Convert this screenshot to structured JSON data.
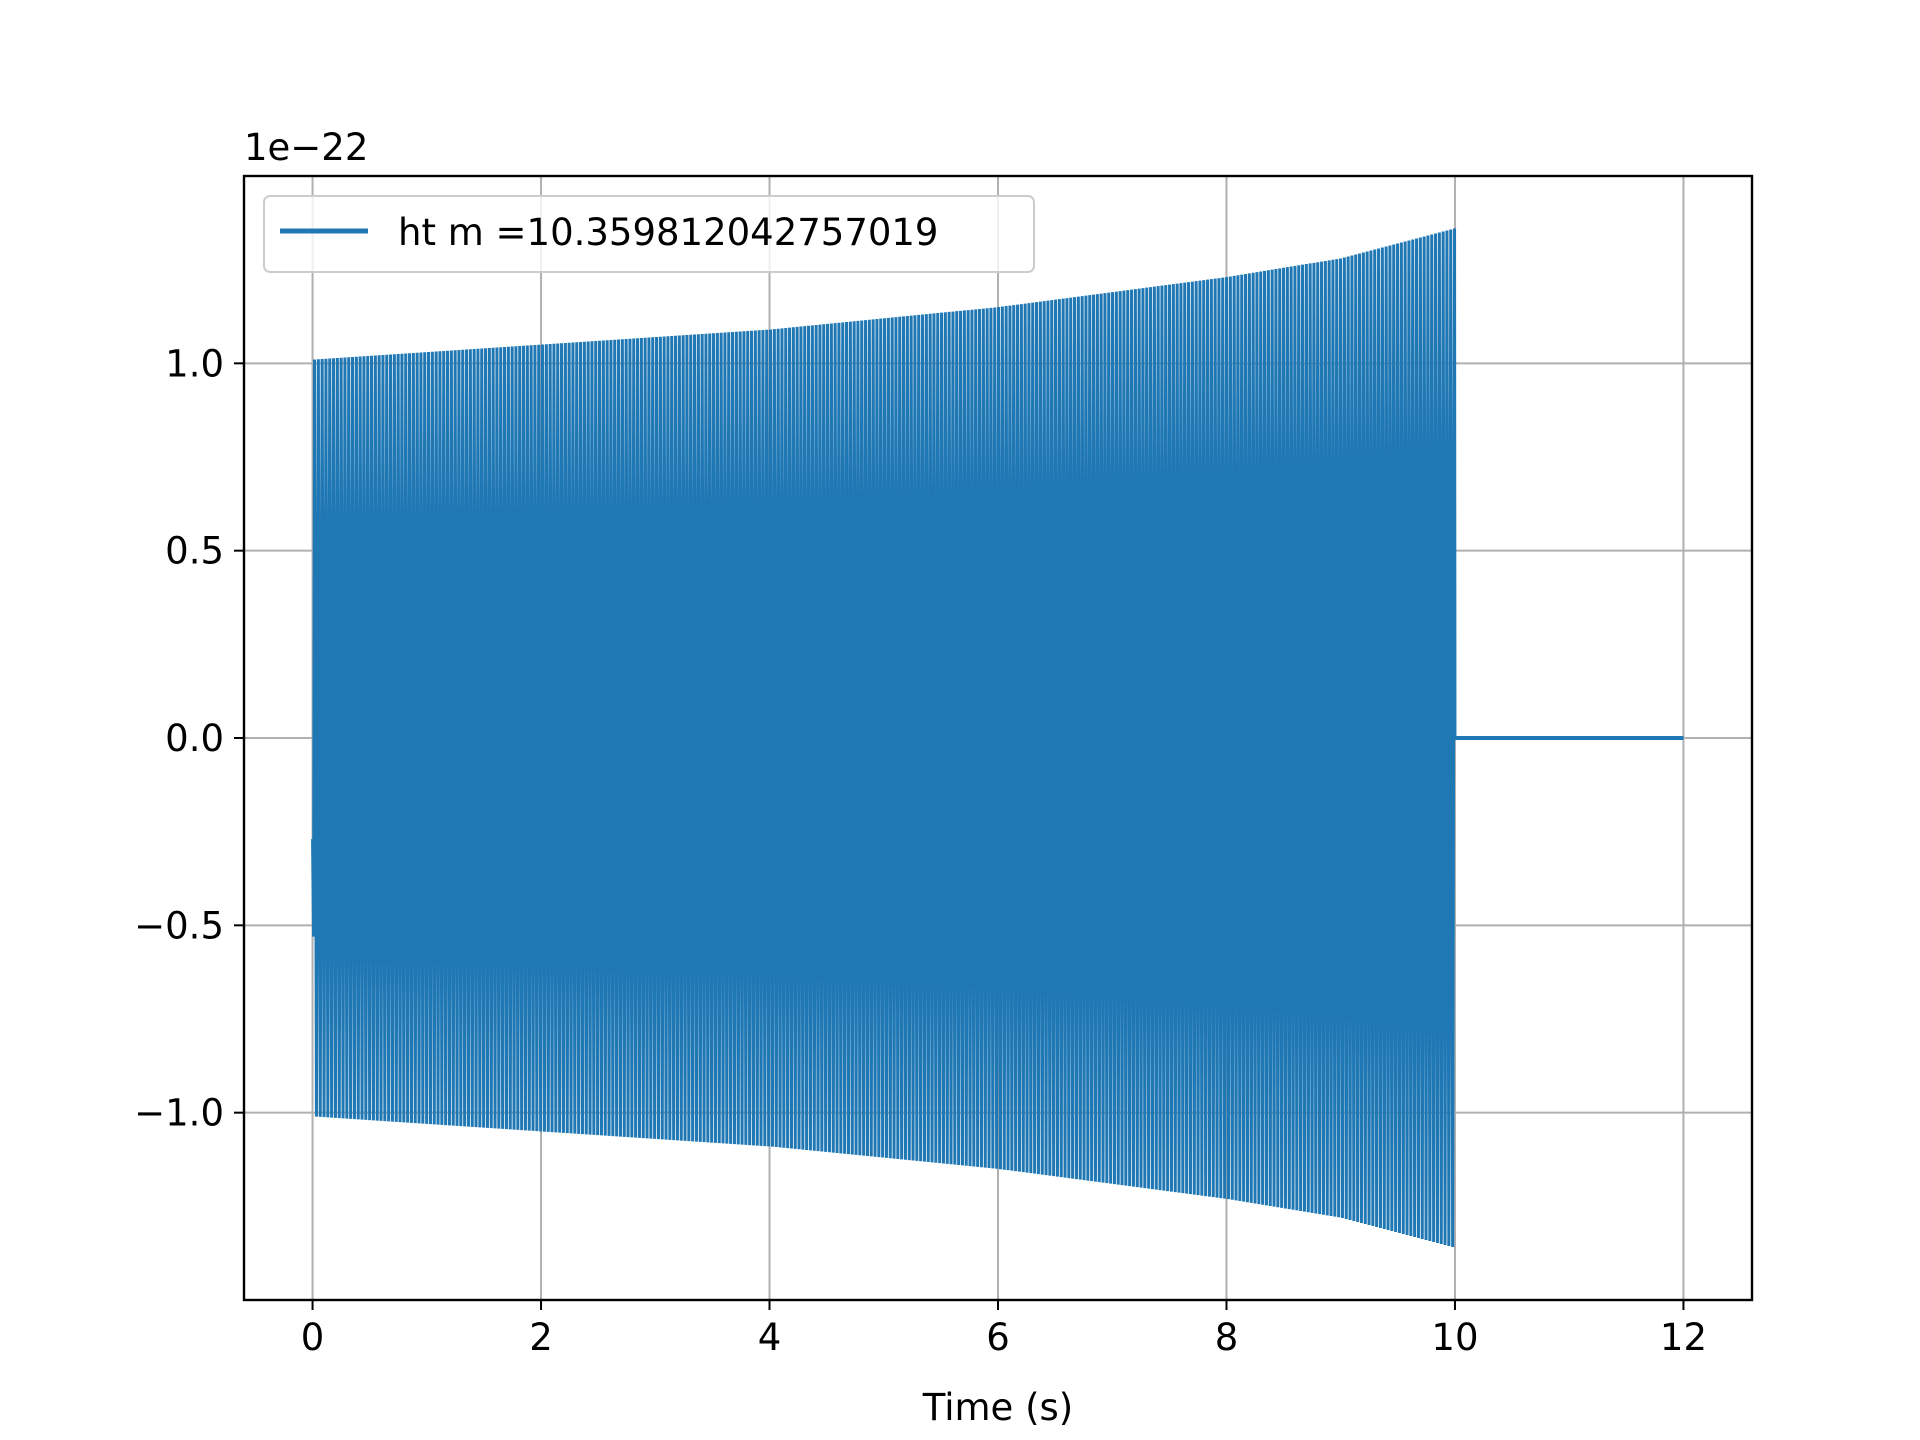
{
  "chart_data": {
    "type": "line",
    "title": "",
    "xlabel": "Time (s)",
    "ylabel": "",
    "offset_text": "1e−22",
    "xlim": [
      -0.6,
      12.6
    ],
    "ylim": [
      -1.5,
      1.5
    ],
    "xticks": [
      0,
      2,
      4,
      6,
      8,
      10,
      12
    ],
    "xtick_labels": [
      "0",
      "2",
      "4",
      "6",
      "8",
      "10",
      "12"
    ],
    "yticks": [
      1.0,
      0.5,
      0.0,
      -0.5,
      -1.0
    ],
    "ytick_labels": [
      "1.0",
      "0.5",
      "0.0",
      "−0.5",
      "−1.0"
    ],
    "grid": true,
    "legend_position": "upper-left",
    "colors": {
      "series": "#1f77b4",
      "grid": "#b0b0b0",
      "axes": "#000000"
    },
    "series": [
      {
        "name": "ht m =10.359812042757019",
        "signal_type": "chirp",
        "start_value": -0.27,
        "envelope": {
          "t": [
            0,
            2,
            4,
            6,
            8,
            9,
            10
          ],
          "amplitude": [
            1.01,
            1.05,
            1.09,
            1.15,
            1.23,
            1.28,
            1.36
          ]
        },
        "chirp_end_time": 10,
        "flat_segment": {
          "x": [
            10,
            12
          ],
          "y": 0.0
        }
      }
    ]
  }
}
